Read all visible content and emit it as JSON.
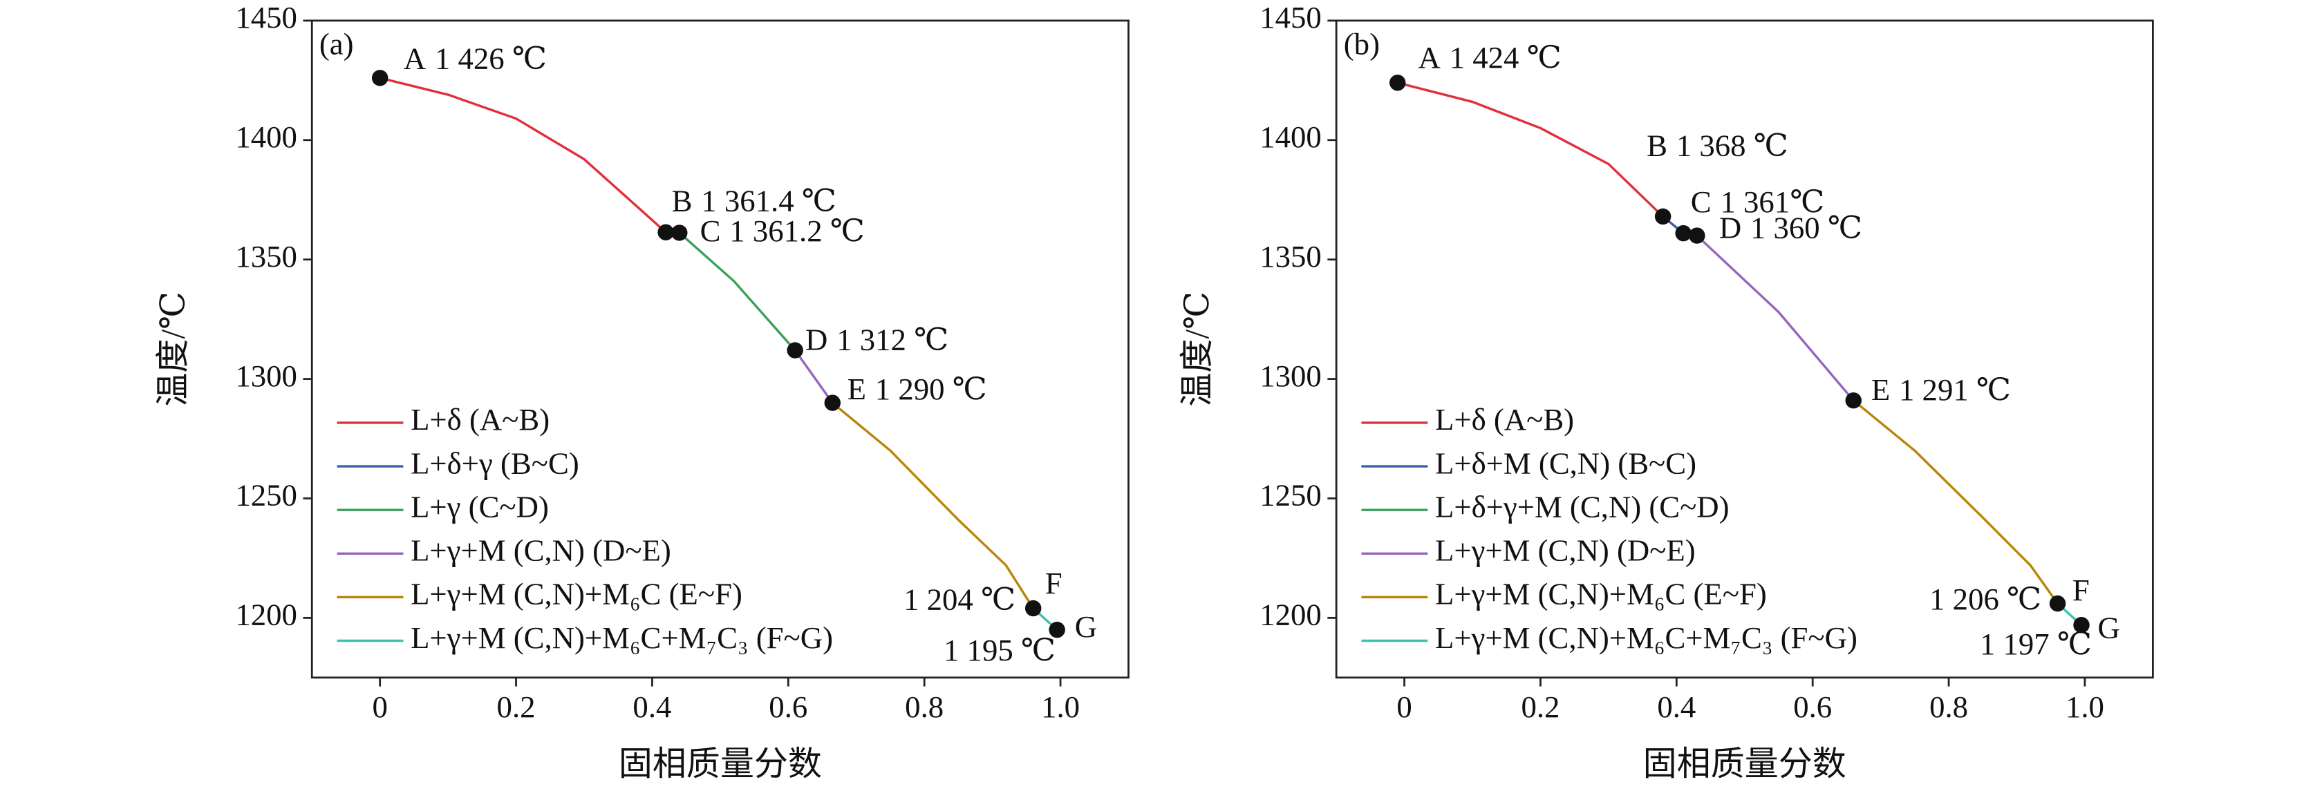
{
  "chart_data": [
    {
      "type": "line",
      "panel": "(a)",
      "xlabel": "固相质量分数",
      "ylabel": "温度/℃",
      "xlim": [
        -0.1,
        1.1
      ],
      "ylim": [
        1175,
        1450
      ],
      "xticks": [
        0,
        0.2,
        0.4,
        0.6,
        0.8,
        {
          "value": 1,
          "label": "1.0"
        }
      ],
      "yticks": [
        1200,
        1250,
        1300,
        1350,
        1400,
        1450
      ],
      "grid": false,
      "legend": "lower left",
      "series": [
        {
          "name": "L+δ (A~B)",
          "color": "#e0303a",
          "x": [
            0,
            0.1,
            0.2,
            0.3,
            0.42
          ],
          "values": [
            1426,
            1419,
            1409,
            1392,
            1361.4
          ]
        },
        {
          "name": "L+δ+γ (B~C)",
          "color": "#3b5ea8",
          "x": [
            0.42,
            0.44
          ],
          "values": [
            1361.4,
            1361.2
          ]
        },
        {
          "name": "L+γ (C~D)",
          "color": "#3aa05a",
          "x": [
            0.44,
            0.52,
            0.61
          ],
          "values": [
            1361.2,
            1341,
            1312
          ]
        },
        {
          "name": "L+γ+M (C,N) (D~E)",
          "color": "#9467bd",
          "x": [
            0.61,
            0.665
          ],
          "values": [
            1312,
            1290
          ]
        },
        {
          "name": "L+γ+M (C,N)+M₆C (E~F)",
          "color": "#b8860b",
          "x": [
            0.665,
            0.75,
            0.85,
            0.92,
            0.96
          ],
          "values": [
            1290,
            1270,
            1241,
            1222,
            1204
          ]
        },
        {
          "name": "L+γ+M (C,N)+M₆C+M₇C₃ (F~G)",
          "color": "#40c0b0",
          "x": [
            0.96,
            0.995
          ],
          "values": [
            1204,
            1195
          ]
        }
      ],
      "points": {
        "names": [
          "A",
          "B",
          "C",
          "D",
          "E",
          "F",
          "G"
        ],
        "x": [
          0,
          0.42,
          0.44,
          0.61,
          0.665,
          0.96,
          0.995
        ],
        "y": [
          1426,
          1361.4,
          1361.2,
          1312,
          1290,
          1204,
          1195
        ],
        "value_labels": [
          "1 426 ℃",
          "1 361.4 ℃",
          "1 361.2 ℃",
          "1 312 ℃",
          "1 290 ℃",
          "1 204 ℃",
          "1 195 ℃"
        ]
      }
    },
    {
      "type": "line",
      "panel": "(b)",
      "xlabel": "固相质量分数",
      "ylabel": "温度/℃",
      "xlim": [
        -0.1,
        1.1
      ],
      "ylim": [
        1175,
        1450
      ],
      "xticks": [
        0,
        0.2,
        0.4,
        0.6,
        0.8,
        {
          "value": 1,
          "label": "1.0"
        }
      ],
      "yticks": [
        1200,
        1250,
        1300,
        1350,
        1400,
        1450
      ],
      "grid": false,
      "legend": "lower left",
      "series": [
        {
          "name": "L+δ (A~B)",
          "color": "#e0303a",
          "x": [
            -0.01,
            0.1,
            0.2,
            0.3,
            0.38
          ],
          "values": [
            1424,
            1416,
            1405,
            1390,
            1368
          ]
        },
        {
          "name": "L+δ+M (C,N) (B~C)",
          "color": "#3b5ea8",
          "x": [
            0.38,
            0.41
          ],
          "values": [
            1368,
            1361
          ]
        },
        {
          "name": "L+δ+γ+M (C,N) (C~D)",
          "color": "#3aa05a",
          "x": [
            0.41,
            0.43
          ],
          "values": [
            1361,
            1360
          ]
        },
        {
          "name": "L+γ+M (C,N) (D~E)",
          "color": "#9467bd",
          "x": [
            0.43,
            0.55,
            0.66
          ],
          "values": [
            1360,
            1328,
            1291
          ]
        },
        {
          "name": "L+γ+M (C,N)+M₆C (E~F)",
          "color": "#b8860b",
          "x": [
            0.66,
            0.75,
            0.85,
            0.92,
            0.96
          ],
          "values": [
            1291,
            1270,
            1242,
            1222,
            1206
          ]
        },
        {
          "name": "L+γ+M (C,N)+M₆C+M₇C₃ (F~G)",
          "color": "#40c0b0",
          "x": [
            0.96,
            0.995
          ],
          "values": [
            1206,
            1197
          ]
        }
      ],
      "points": {
        "names": [
          "A",
          "B",
          "C",
          "D",
          "E",
          "F",
          "G"
        ],
        "x": [
          -0.01,
          0.38,
          0.41,
          0.43,
          0.66,
          0.96,
          0.995
        ],
        "y": [
          1424,
          1368,
          1361,
          1360,
          1291,
          1206,
          1197
        ],
        "value_labels": [
          "1 424 ℃",
          "1 368 ℃",
          "1 361℃",
          "1 360 ℃",
          "1 291 ℃",
          "1 206 ℃",
          "1 197 ℃"
        ]
      }
    }
  ]
}
